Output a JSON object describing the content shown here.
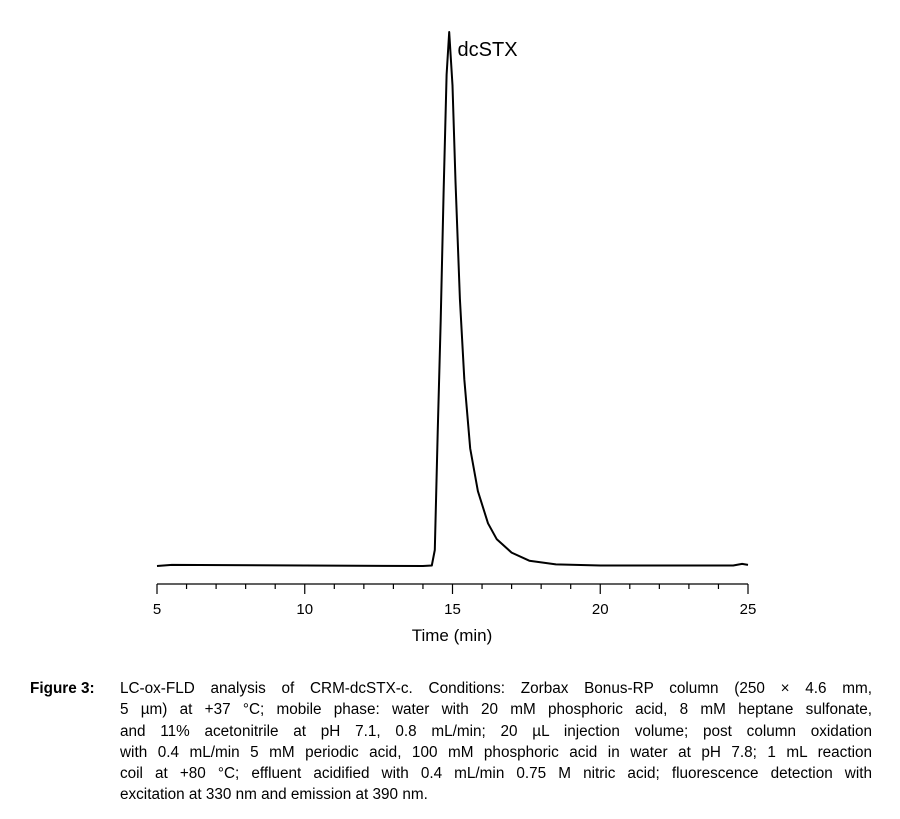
{
  "chart_data": {
    "type": "line",
    "title": "",
    "xlabel": "Time (min)",
    "ylabel": "",
    "xlim": [
      5,
      25
    ],
    "x_ticks": [
      5,
      10,
      15,
      20,
      25
    ],
    "x_minor_step": 1,
    "y_axis_shown": false,
    "grid": false,
    "line_color": "#000000",
    "annotations": [
      {
        "text": "dcSTX",
        "x": 14.9
      }
    ],
    "series": [
      {
        "x": [
          5.0,
          5.5,
          14.0,
          14.3,
          14.4,
          14.5,
          14.6,
          14.7,
          14.8,
          14.89,
          15.0,
          15.1,
          15.25,
          15.4,
          15.6,
          15.86,
          16.2,
          16.5,
          17.0,
          17.6,
          18.5,
          20.0,
          24.5,
          24.8,
          25.0
        ],
        "y": [
          0,
          0.2,
          0,
          0.1,
          3,
          25,
          46,
          70,
          92,
          100,
          90,
          72,
          50,
          35,
          22,
          14,
          8,
          5,
          2.5,
          1,
          0.3,
          0.1,
          0.1,
          0.4,
          0.2
        ]
      }
    ]
  },
  "caption": {
    "label": "Figure 3:",
    "lines": [
      "LC-ox-FLD analysis of CRM-dcSTX-c. Conditions: Zorbax Bonus-RP column (250 × 4.6 mm,",
      "5 µm) at +37 °C; mobile phase: water with 20 mM phosphoric acid, 8 mM heptane sulfonate,",
      "and 11% acetonitrile at pH 7.1, 0.8 mL/min; 20 µL injection volume; post column oxidation",
      "with 0.4 mL/min 5 mM periodic acid, 100 mM phosphoric acid in water at pH 7.8; 1 mL reaction",
      "coil at +80 °C; effluent acidified with 0.4 mL/min 0.75 M nitric acid; fluorescence detection with",
      "excitation at 330 nm and emission at 390 nm."
    ]
  }
}
